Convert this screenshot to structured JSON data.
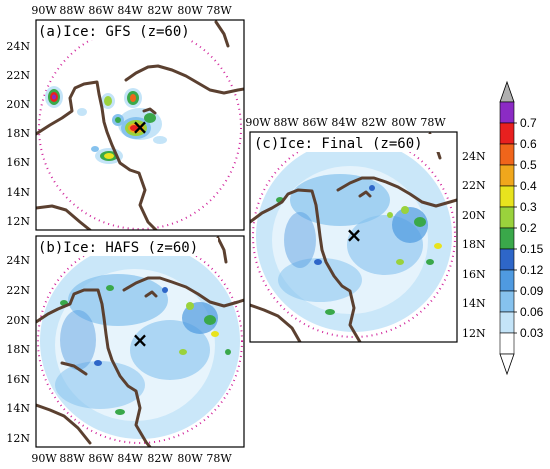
{
  "figure": {
    "panels": [
      {
        "id": "a",
        "title": "(a)Ice: GFS (z=60)",
        "lon_ticks": [
          "90W",
          "88W",
          "86W",
          "84W",
          "82W",
          "80W",
          "78W"
        ],
        "lat_ticks": [
          "24N",
          "22N",
          "20N",
          "18N",
          "16N",
          "14N",
          "12N"
        ],
        "lon_tick_side": "top",
        "lat_tick_side": "left"
      },
      {
        "id": "b",
        "title": "(b)Ice: HAFS (z=60)",
        "lon_ticks": [
          "90W",
          "88W",
          "86W",
          "84W",
          "82W",
          "80W",
          "78W"
        ],
        "lat_ticks": [
          "24N",
          "22N",
          "20N",
          "18N",
          "16N",
          "14N",
          "12N"
        ],
        "lon_tick_side": "bottom",
        "lat_tick_side": "left"
      },
      {
        "id": "c",
        "title": "(c)Ice: Final (z=60)",
        "lon_ticks": [
          "90W",
          "88W",
          "86W",
          "84W",
          "82W",
          "80W",
          "78W"
        ],
        "lat_ticks": [
          "24N",
          "22N",
          "20N",
          "18N",
          "16N",
          "14N",
          "12N"
        ],
        "lon_tick_side": "top",
        "lat_tick_side": "right"
      }
    ],
    "colorbar": {
      "levels": [
        "0.7",
        "0.6",
        "0.5",
        "0.4",
        "0.3",
        "0.2",
        "0.15",
        "0.12",
        "0.09",
        "0.06",
        "0.03"
      ],
      "colors": [
        "#8b2bc4",
        "#e8201f",
        "#f0651b",
        "#f0a71c",
        "#e8e31e",
        "#9ad23c",
        "#3aa84a",
        "#2e66c8",
        "#4f9ae0",
        "#86c2ee",
        "#c4e4f8",
        "#ffffff"
      ],
      "top_arrow_color": "#b0b0b0",
      "bottom_arrow_color": "#ffffff"
    },
    "center_marker": "×",
    "colors": {
      "coastline": "#5b4030",
      "radius_circle": "#d0219a",
      "frame": "#000000"
    }
  }
}
